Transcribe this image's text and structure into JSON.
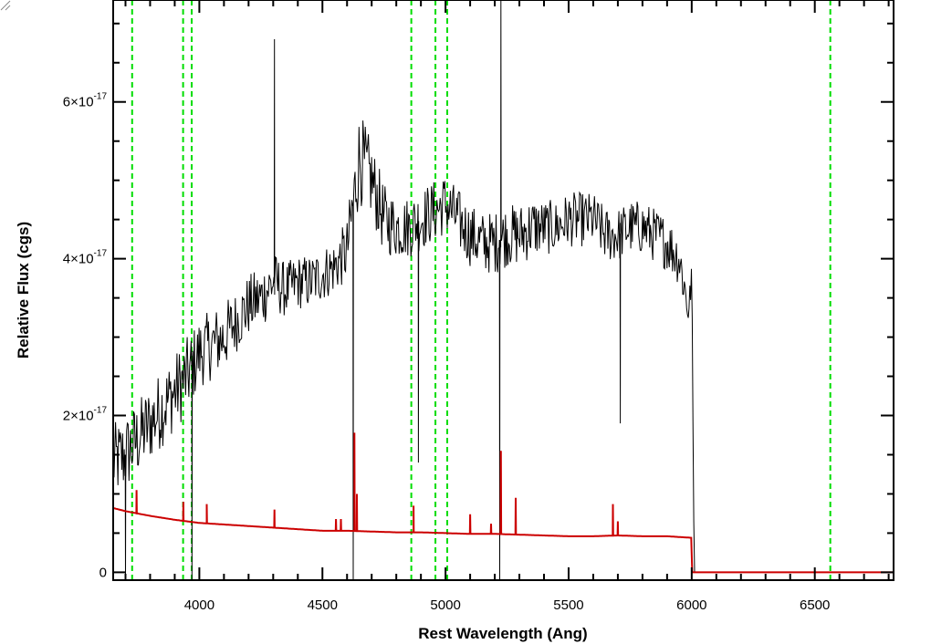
{
  "chart_data": {
    "type": "line",
    "title": "",
    "xlabel": "Rest Wavelength (Ang)",
    "ylabel": "Relative Flux (cgs)",
    "xlim": [
      3650,
      6820
    ],
    "ylim": [
      -1e-18,
      7.3e-17
    ],
    "x_ticks": [
      {
        "value": 4000,
        "label": "4000"
      },
      {
        "value": 4500,
        "label": "4500"
      },
      {
        "value": 5000,
        "label": "5000"
      },
      {
        "value": 5500,
        "label": "5500"
      },
      {
        "value": 6000,
        "label": "6000"
      },
      {
        "value": 6500,
        "label": "6500"
      }
    ],
    "y_ticks": [
      {
        "value": 0,
        "mantissa": "0",
        "exponent": ""
      },
      {
        "value": 2e-17,
        "mantissa": "2×10",
        "exponent": "-17"
      },
      {
        "value": 4e-17,
        "mantissa": "4×10",
        "exponent": "-17"
      },
      {
        "value": 6e-17,
        "mantissa": "6×10",
        "exponent": "-17"
      }
    ],
    "grid": false,
    "series": [
      {
        "color": "#000000",
        "x": [
          3650,
          3700,
          3750,
          3800,
          3850,
          3900,
          3950,
          4000,
          4050,
          4100,
          4150,
          4200,
          4250,
          4300,
          4350,
          4400,
          4450,
          4500,
          4550,
          4600,
          4650,
          4700,
          4750,
          4800,
          4850,
          4900,
          4950,
          5000,
          5050,
          5100,
          5150,
          5200,
          5250,
          5300,
          5350,
          5400,
          5450,
          5500,
          5550,
          5600,
          5650,
          5700,
          5750,
          5800,
          5850,
          5900,
          5950,
          5990,
          6000,
          6005,
          6010,
          6820
        ],
        "y": [
          1.4e-17,
          1.5e-17,
          1.7e-17,
          1.9e-17,
          2.1e-17,
          2.3e-17,
          2.5e-17,
          2.8e-17,
          2.9e-17,
          3e-17,
          3.2e-17,
          3.4e-17,
          3.5e-17,
          3.7e-17,
          3.6e-17,
          3.7e-17,
          3.7e-17,
          3.8e-17,
          3.9e-17,
          4.1e-17,
          5.3e-17,
          5e-17,
          4.5e-17,
          4.4e-17,
          4.4e-17,
          4.5e-17,
          4.6e-17,
          4.7e-17,
          4.5e-17,
          4.3e-17,
          4.2e-17,
          4.2e-17,
          4.3e-17,
          4.3e-17,
          4.4e-17,
          4.4e-17,
          4.4e-17,
          4.5e-17,
          4.5e-17,
          4.5e-17,
          4.3e-17,
          4.3e-17,
          4.4e-17,
          4.4e-17,
          4.3e-17,
          4.2e-17,
          4e-17,
          3.3e-17,
          3.9e-17,
          2e-17,
          0,
          0
        ],
        "noise": [
          5e-18,
          5e-18,
          5e-18,
          5e-18,
          5e-18,
          5e-18,
          5e-18,
          4.5e-18,
          4.5e-18,
          4.5e-18,
          4e-18,
          4e-18,
          4e-18,
          4e-18,
          3.5e-18,
          3.5e-18,
          3.5e-18,
          3.5e-18,
          3.5e-18,
          4e-18,
          6e-18,
          5e-18,
          4.5e-18,
          4e-18,
          4e-18,
          4e-18,
          4e-18,
          4e-18,
          4e-18,
          4e-18,
          4e-18,
          4e-18,
          4e-18,
          4e-18,
          4e-18,
          3.5e-18,
          3.5e-18,
          3.5e-18,
          3.5e-18,
          3.5e-18,
          3.5e-18,
          3.5e-18,
          3.5e-18,
          3.5e-18,
          3.5e-18,
          3.5e-18,
          3.5e-18,
          3e-18,
          2e-18,
          0,
          0,
          0
        ],
        "spikes": [
          {
            "x": 4305,
            "y": 6.8e-17
          },
          {
            "x": 4625,
            "y": -1e-18
          },
          {
            "x": 4890,
            "y": 1.4e-17
          },
          {
            "x": 5220,
            "y": -1e-18
          },
          {
            "x": 5225,
            "y": 7.3e-17
          },
          {
            "x": 5710,
            "y": 1.9e-17
          },
          {
            "x": 3700,
            "y": -1e-18
          },
          {
            "x": 3970,
            "y": -1e-18
          }
        ]
      },
      {
        "color": "#cc0000",
        "x": [
          3650,
          3700,
          3800,
          3900,
          4000,
          4100,
          4200,
          4300,
          4400,
          4500,
          4600,
          4700,
          4800,
          4900,
          5000,
          5100,
          5200,
          5300,
          5400,
          5500,
          5600,
          5700,
          5800,
          5900,
          6000,
          6002,
          6820
        ],
        "y": [
          8.2e-18,
          7.8e-18,
          7.2e-18,
          6.7e-18,
          6.3e-18,
          6.1e-18,
          5.9e-18,
          5.7e-18,
          5.5e-18,
          5.3e-18,
          5.3e-18,
          5.2e-18,
          5.1e-18,
          5.1e-18,
          5e-18,
          4.9e-18,
          4.9e-18,
          4.8e-18,
          4.7e-18,
          4.6e-18,
          4.6e-18,
          4.7e-18,
          4.6e-18,
          4.6e-18,
          4.4e-18,
          0,
          0
        ],
        "spikes": [
          {
            "x": 3745,
            "y": 1.05e-17
          },
          {
            "x": 3935,
            "y": 9e-18
          },
          {
            "x": 4030,
            "y": 8.7e-18
          },
          {
            "x": 4305,
            "y": 8e-18
          },
          {
            "x": 4555,
            "y": 6.8e-18
          },
          {
            "x": 4575,
            "y": 6.8e-18
          },
          {
            "x": 4630,
            "y": 1.78e-17
          },
          {
            "x": 4640,
            "y": 1e-17
          },
          {
            "x": 4870,
            "y": 8.5e-18
          },
          {
            "x": 5100,
            "y": 7.4e-18
          },
          {
            "x": 5185,
            "y": 6.2e-18
          },
          {
            "x": 5225,
            "y": 1.55e-17
          },
          {
            "x": 5285,
            "y": 9.5e-18
          },
          {
            "x": 5680,
            "y": 8.7e-18
          },
          {
            "x": 5700,
            "y": 6.5e-18
          }
        ]
      }
    ],
    "vertical_lines": {
      "color": "#00dd00",
      "style": "dashed",
      "x": [
        3727,
        3934,
        3969,
        4861,
        4959,
        5007,
        6563
      ]
    }
  }
}
